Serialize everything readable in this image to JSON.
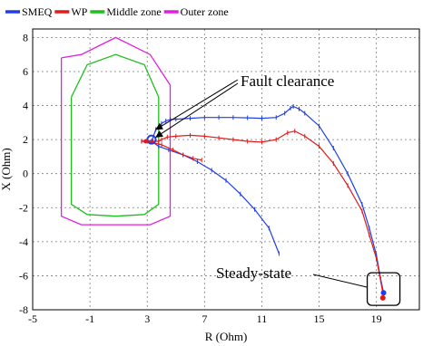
{
  "chart_data": {
    "type": "line",
    "xlabel": "R (Ohm)",
    "ylabel": "X (Ohm)",
    "xlim": [
      -5,
      22
    ],
    "ylim": [
      -8,
      8.5
    ],
    "xticks": [
      -5,
      -1,
      3,
      7,
      11,
      15,
      19
    ],
    "yticks": [
      -8,
      -6,
      -4,
      -2,
      0,
      2,
      4,
      6,
      8
    ],
    "xtick_labels": [
      "-5",
      "-1",
      "3",
      "7",
      "11",
      "15",
      "19"
    ],
    "ytick_labels": [
      "-8",
      "-6",
      "-4",
      "-2",
      "0",
      "2",
      "4",
      "6",
      "8"
    ],
    "grid": true,
    "legend_position": "top-left",
    "series": [
      {
        "name": "SMEQ",
        "color": "#1f3fe6",
        "marker": true,
        "x": [
          3.3,
          3.6,
          4.0,
          4.3,
          4.6,
          5.0,
          6.0,
          7.0,
          8.0,
          9.0,
          10.0,
          11.0,
          12.0,
          12.6,
          13.0,
          13.2,
          13.6,
          14.0,
          15.0,
          16.0,
          17.0,
          18.0,
          18.5,
          19.0,
          19.3,
          19.5
        ],
        "y": [
          1.9,
          2.6,
          2.95,
          3.1,
          3.18,
          3.2,
          3.25,
          3.3,
          3.3,
          3.3,
          3.28,
          3.25,
          3.3,
          3.55,
          3.85,
          3.95,
          3.8,
          3.55,
          2.8,
          1.5,
          0.0,
          -1.8,
          -3.2,
          -4.8,
          -6.2,
          -7.0
        ]
      },
      {
        "name": "SMEQ",
        "color": "#1f3fe6",
        "marker": true,
        "x": [
          3.3,
          3.8,
          4.5,
          5.5,
          6.5,
          7.5,
          8.5,
          9.5,
          10.5,
          11.5,
          12.2
        ],
        "y": [
          1.9,
          1.6,
          1.4,
          1.1,
          0.7,
          0.2,
          -0.4,
          -1.2,
          -2.1,
          -3.2,
          -4.7
        ]
      },
      {
        "name": "WP",
        "color": "#e21a1a",
        "marker": true,
        "x": [
          2.6,
          3.0,
          3.4,
          3.8,
          4.0,
          4.4,
          5.0,
          6.0,
          7.0,
          8.0,
          9.0,
          10.0,
          11.0,
          12.0,
          12.8,
          13.3,
          14.0,
          15.0,
          16.0,
          17.0,
          18.0,
          18.5,
          19.0,
          19.3,
          19.5
        ],
        "y": [
          1.9,
          1.95,
          1.9,
          1.9,
          2.0,
          2.15,
          2.2,
          2.25,
          2.2,
          2.1,
          2.0,
          1.9,
          1.85,
          2.0,
          2.4,
          2.5,
          2.2,
          1.6,
          0.6,
          -0.7,
          -2.2,
          -3.6,
          -5.0,
          -6.3,
          -7.3
        ]
      },
      {
        "name": "WP",
        "color": "#e21a1a",
        "marker": true,
        "x": [
          2.6,
          3.2,
          4.0,
          4.8,
          5.5,
          6.2,
          6.8
        ],
        "y": [
          1.9,
          1.85,
          1.7,
          1.4,
          1.1,
          0.9,
          0.8
        ]
      }
    ],
    "zones": [
      {
        "name": "Middle zone",
        "color": "#1fbf1f",
        "x": [
          -2.3,
          -2.3,
          -1.2,
          0.8,
          2.8,
          3.8,
          3.8,
          2.8,
          0.8,
          -1.2,
          -2.3
        ],
        "y": [
          4.5,
          -1.8,
          -2.4,
          -2.5,
          -2.4,
          -1.8,
          4.5,
          6.4,
          7.0,
          6.4,
          4.5
        ]
      },
      {
        "name": "Outer zone",
        "color": "#e020e0",
        "x": [
          -3.0,
          -3.0,
          -1.6,
          0.8,
          3.2,
          4.6,
          4.6,
          3.2,
          0.8,
          -1.6,
          -3.0
        ],
        "y": [
          6.8,
          -2.5,
          -3.0,
          -3.0,
          -3.0,
          -2.5,
          5.2,
          7.0,
          8.0,
          7.0,
          6.8
        ]
      }
    ],
    "annotations": [
      {
        "text": "Fault clearance",
        "target_points": [
          [
            3.3,
            2.6
          ],
          [
            3.3,
            2.15
          ]
        ]
      },
      {
        "text": "Steady-state",
        "target_points": [
          [
            19.5,
            -7.1
          ]
        ]
      }
    ]
  }
}
